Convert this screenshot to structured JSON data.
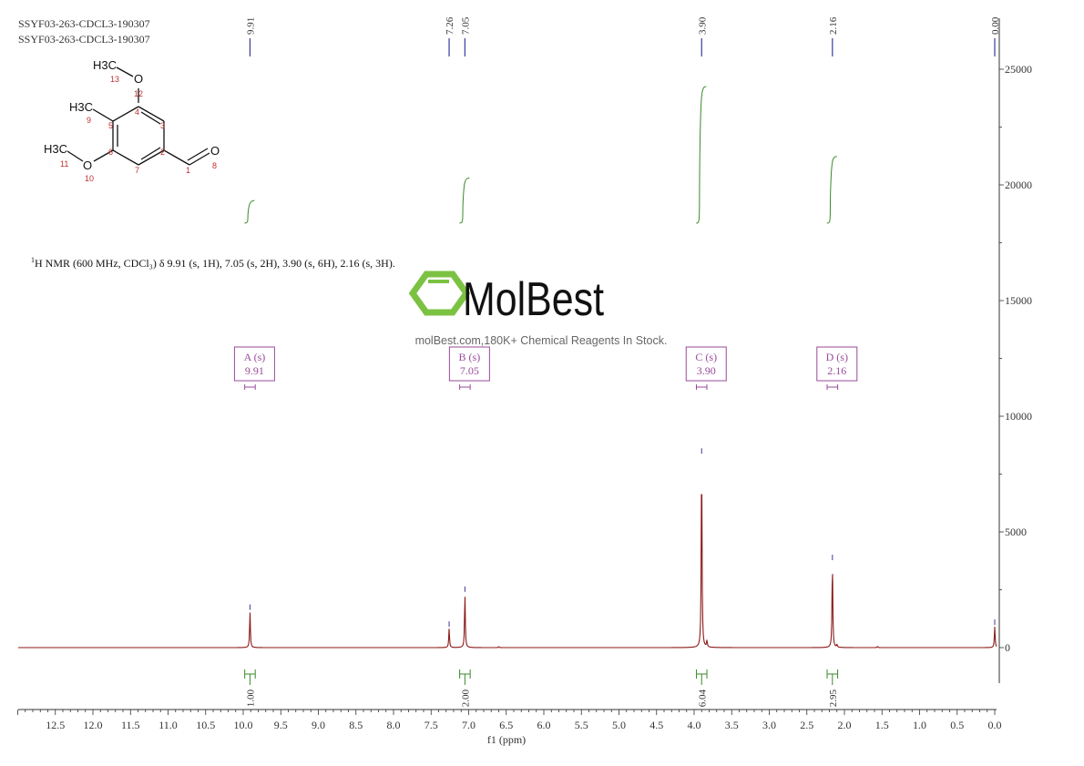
{
  "header": {
    "title_line1": "SSYF03-263-CDCL3-190307",
    "title_line2": "SSYF03-263-CDCL3-190307"
  },
  "description": {
    "superscript": "1",
    "text": "H NMR (600 MHz, CDCl₃) δ 9.91 (s, 1H), 7.05 (s, 2H), 3.90 (s, 6H), 2.16 (s, 3H)."
  },
  "structure": {
    "groups": [
      {
        "label": "H3C",
        "number": "13"
      },
      {
        "label": "O",
        "number": "12"
      },
      {
        "label": "H3C",
        "number": "9"
      },
      {
        "label": "H3C",
        "number": "11"
      },
      {
        "label": "O",
        "number": "10"
      },
      {
        "label": "O",
        "number": "8"
      }
    ],
    "ring_numbers": [
      "4",
      "3",
      "5",
      "2",
      "6",
      "7",
      "1"
    ]
  },
  "watermark": {
    "brand": "MolBest",
    "tagline": "molBest.com,180K+ Chemical Reagents In Stock.",
    "brand_color": "#7cc242"
  },
  "colors": {
    "spectrum": "#8b1a1a",
    "integral": "#3a8a2a",
    "peak_label": "#3a3a9a",
    "multiplet": "#9a4a9a"
  },
  "chart_data": {
    "type": "line",
    "xlabel": "f1 (ppm)",
    "ylabel": "",
    "xlim": [
      13.0,
      0.0
    ],
    "ylim": [
      -2700,
      27000
    ],
    "x_reversed": true,
    "x_ticks": [
      "12.5",
      "12.0",
      "11.5",
      "11.0",
      "10.5",
      "10.0",
      "9.5",
      "9.0",
      "8.5",
      "8.0",
      "7.5",
      "7.0",
      "6.5",
      "6.0",
      "5.5",
      "5.0",
      "4.5",
      "4.0",
      "3.5",
      "3.0",
      "2.5",
      "2.0",
      "1.5",
      "1.0",
      "0.5",
      "0.0"
    ],
    "y_ticks": [
      "25000",
      "20000",
      "15000",
      "10000",
      "5000",
      "0"
    ],
    "grid": false,
    "peaks": [
      {
        "ppm": 9.91,
        "intensity": 1550
      },
      {
        "ppm": 7.26,
        "intensity": 820
      },
      {
        "ppm": 7.05,
        "intensity": 2330
      },
      {
        "ppm": 6.6,
        "intensity": 40
      },
      {
        "ppm": 3.9,
        "intensity": 8300
      },
      {
        "ppm": 3.83,
        "intensity": 280
      },
      {
        "ppm": 2.16,
        "intensity": 3700
      },
      {
        "ppm": 2.1,
        "intensity": 120
      },
      {
        "ppm": 1.56,
        "intensity": 50
      },
      {
        "ppm": 0.0,
        "intensity": 900
      }
    ],
    "peak_labels": [
      "9.91",
      "7.26",
      "7.05",
      "3.90",
      "2.16",
      "0.00"
    ],
    "multiplets": [
      {
        "name": "A",
        "type": "(s)",
        "shift": "9.91",
        "range": [
          9.98,
          9.84
        ]
      },
      {
        "name": "B",
        "type": "(s)",
        "shift": "7.05",
        "range": [
          7.12,
          6.98
        ]
      },
      {
        "name": "C",
        "type": "(s)",
        "shift": "3.90",
        "range": [
          3.97,
          3.83
        ]
      },
      {
        "name": "D",
        "type": "(s)",
        "shift": "2.16",
        "range": [
          2.23,
          2.09
        ]
      }
    ],
    "integrals": [
      {
        "ppm": 9.91,
        "value": "1.00",
        "range": [
          9.98,
          9.84
        ]
      },
      {
        "ppm": 7.05,
        "value": "2.00",
        "range": [
          7.12,
          6.98
        ]
      },
      {
        "ppm": 3.9,
        "value": "6.04",
        "range": [
          3.97,
          3.83
        ]
      },
      {
        "ppm": 2.16,
        "value": "2.95",
        "range": [
          2.23,
          2.09
        ]
      }
    ]
  }
}
